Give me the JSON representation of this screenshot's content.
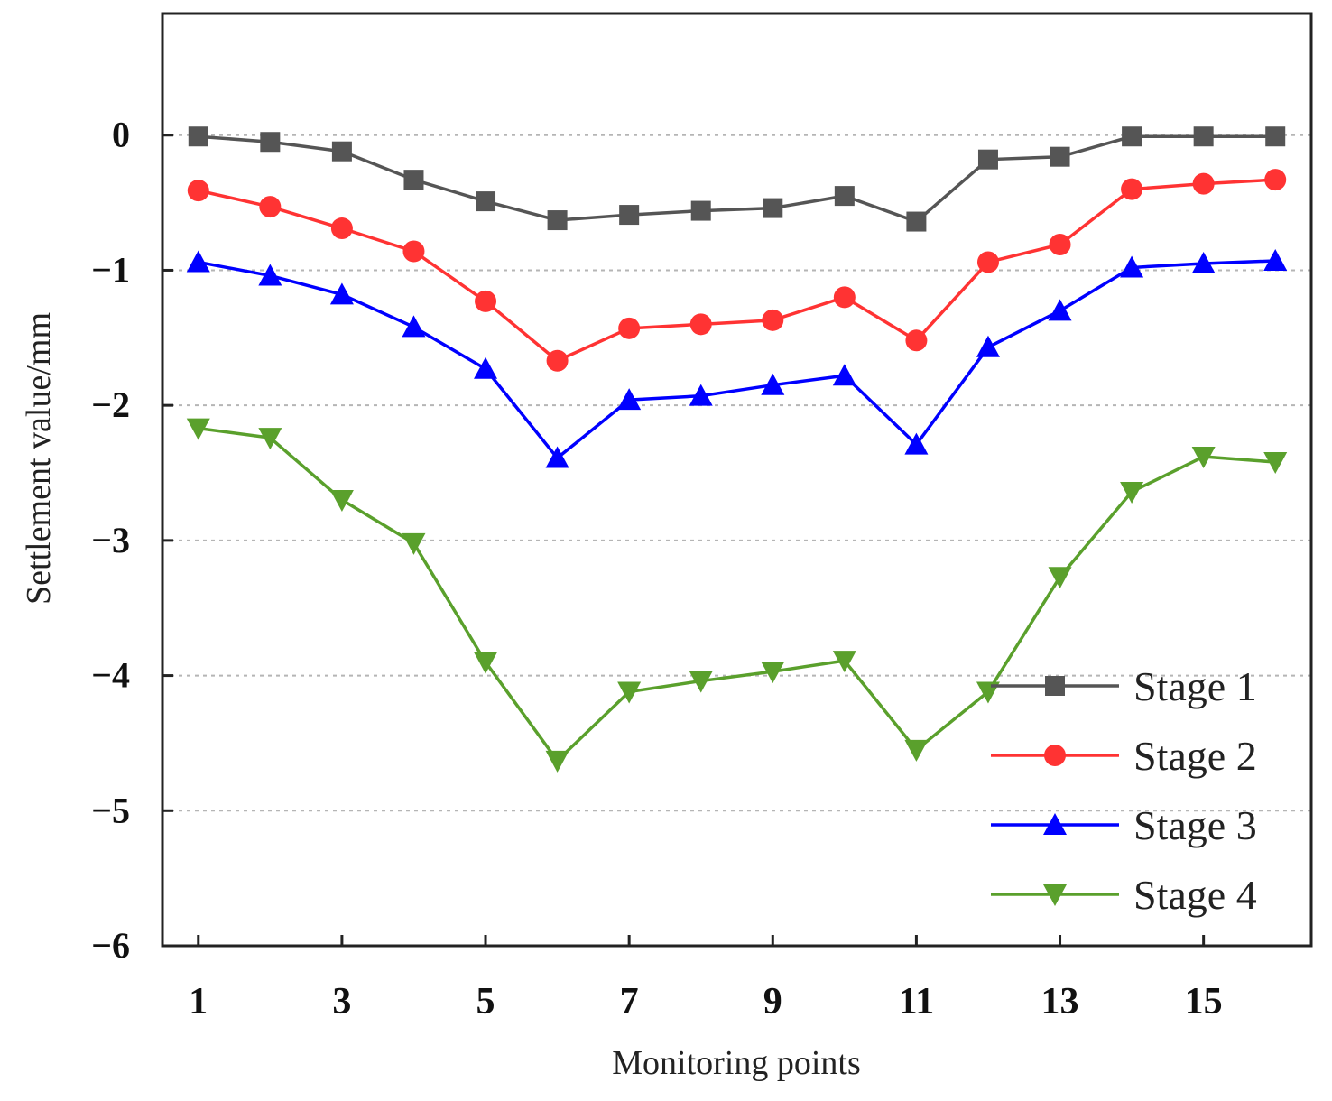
{
  "chart_data": {
    "type": "line",
    "title": "",
    "xlabel": "Monitoring points",
    "ylabel": "Settlement value/mm",
    "xlim": [
      0.5,
      16.5
    ],
    "ylim": [
      -6,
      0.9
    ],
    "x_ticks": [
      1,
      3,
      5,
      7,
      9,
      11,
      13,
      15
    ],
    "y_ticks": [
      0,
      -1,
      -2,
      -3,
      -4,
      -5,
      -6
    ],
    "y_tick_labels": [
      "0",
      "−1",
      "−2",
      "−3",
      "−4",
      "−5",
      "−6"
    ],
    "gridlines_y": [
      0,
      -1,
      -2,
      -3,
      -4,
      -5
    ],
    "legend_position": "lower-right",
    "x": [
      1,
      2,
      3,
      4,
      5,
      6,
      7,
      8,
      9,
      10,
      11,
      12,
      13,
      14,
      15,
      16
    ],
    "series": [
      {
        "name": "Stage 1",
        "color": "#555555",
        "marker": "square",
        "values": [
          -0.01,
          -0.05,
          -0.12,
          -0.33,
          -0.49,
          -0.63,
          -0.59,
          -0.56,
          -0.54,
          -0.45,
          -0.64,
          -0.18,
          -0.16,
          -0.01,
          -0.01,
          -0.01
        ]
      },
      {
        "name": "Stage 2",
        "color": "#ff3333",
        "marker": "circle",
        "values": [
          -0.41,
          -0.53,
          -0.69,
          -0.86,
          -1.23,
          -1.67,
          -1.43,
          -1.4,
          -1.37,
          -1.2,
          -1.52,
          -0.94,
          -0.81,
          -0.4,
          -0.36,
          -0.33
        ]
      },
      {
        "name": "Stage 3",
        "color": "#0000ff",
        "marker": "triangle-up",
        "values": [
          -0.94,
          -1.04,
          -1.18,
          -1.42,
          -1.73,
          -2.39,
          -1.96,
          -1.93,
          -1.85,
          -1.78,
          -2.29,
          -1.57,
          -1.3,
          -0.98,
          -0.95,
          -0.93
        ]
      },
      {
        "name": "Stage 4",
        "color": "#5aa02c",
        "marker": "triangle-down",
        "values": [
          -2.17,
          -2.24,
          -2.7,
          -3.02,
          -3.9,
          -4.63,
          -4.12,
          -4.04,
          -3.97,
          -3.89,
          -4.55,
          -4.12,
          -3.27,
          -2.64,
          -2.38,
          -2.42
        ]
      }
    ]
  }
}
